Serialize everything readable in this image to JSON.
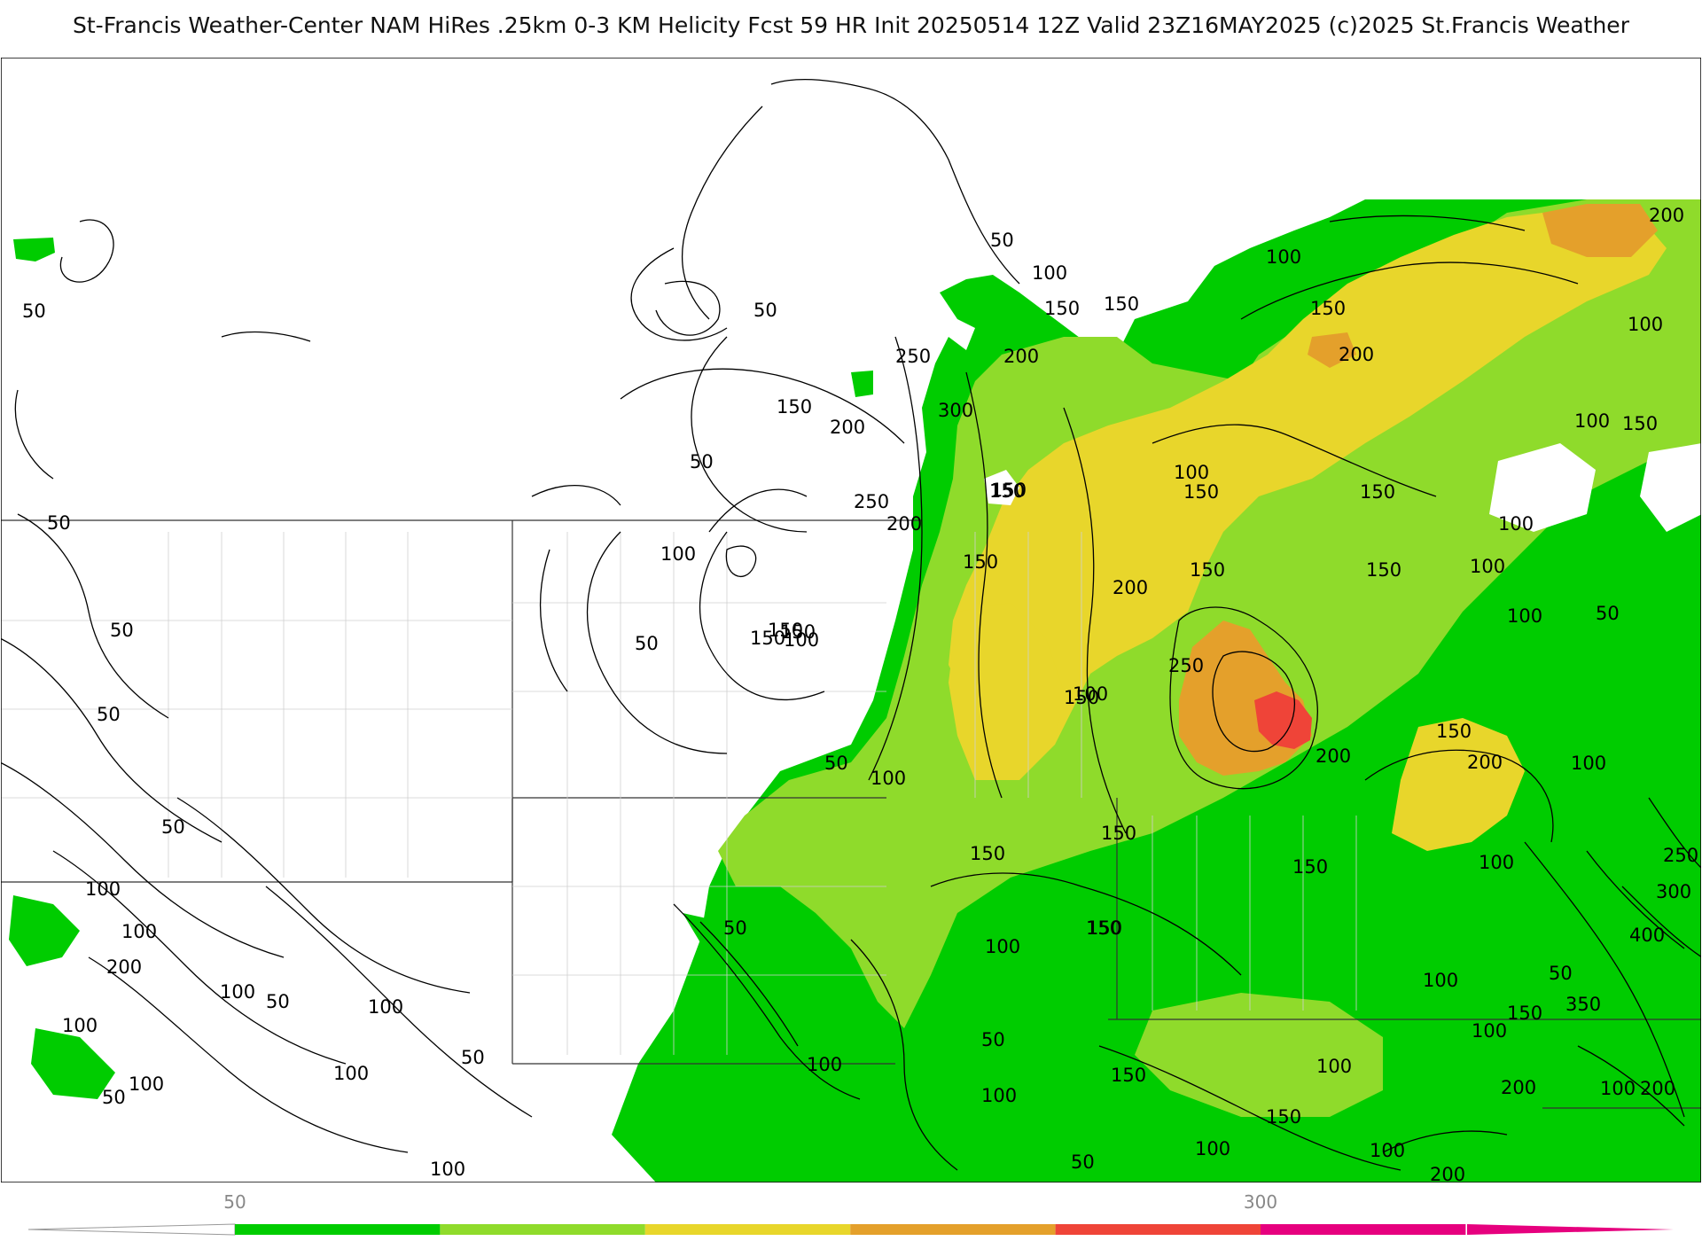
{
  "title": "St-Francis Weather-Center NAM HiRes .25km 0-3 KM Helicity Fcst 59 HR Init 20250514 12Z  Valid 23Z16MAY2025    (c)2025 St.Francis Weather",
  "colors": {
    "light_green": "#00d400",
    "yellow_green": "#8fdb2b",
    "yellow": "#e0d62b",
    "orange": "#e4a02b",
    "red": "#ef4438",
    "magenta": "#e6007e",
    "contour": "#000000",
    "state_border": "#333333",
    "county_border": "#cccccc"
  },
  "colorbar": {
    "tick_labels": [
      "50",
      "300"
    ],
    "segments": [
      {
        "from": 50,
        "to": 100,
        "color": "#00cc00"
      },
      {
        "from": 100,
        "to": 150,
        "color": "#8fdb2b"
      },
      {
        "from": 150,
        "to": 200,
        "color": "#e8d62b"
      },
      {
        "from": 200,
        "to": 250,
        "color": "#e4a02b"
      },
      {
        "from": 250,
        "to": 300,
        "color": "#ef4438"
      },
      {
        "from": 300,
        "to": 350,
        "color": "#e6007e"
      }
    ]
  },
  "contour_labels": [
    "50",
    "50",
    "50",
    "50",
    "50",
    "50",
    "50",
    "50",
    "50",
    "50",
    "50",
    "50",
    "50",
    "50",
    "50",
    "50",
    "50",
    "50",
    "100",
    "100",
    "100",
    "100",
    "100",
    "100",
    "100",
    "100",
    "100",
    "100",
    "100",
    "100",
    "100",
    "100",
    "100",
    "100",
    "100",
    "100",
    "100",
    "100",
    "100",
    "100",
    "100",
    "100",
    "100",
    "100",
    "100",
    "100",
    "100",
    "100",
    "100",
    "150",
    "150",
    "150",
    "150",
    "150",
    "150",
    "150",
    "150",
    "150",
    "150",
    "150",
    "150",
    "150",
    "150",
    "150",
    "150",
    "150",
    "150",
    "150",
    "150",
    "150",
    "150",
    "150",
    "150",
    "150",
    "200",
    "200",
    "200",
    "200",
    "200",
    "200",
    "200",
    "200",
    "200",
    "200",
    "200",
    "200",
    "250",
    "250",
    "250",
    "250",
    "300",
    "300",
    "350",
    "400"
  ]
}
